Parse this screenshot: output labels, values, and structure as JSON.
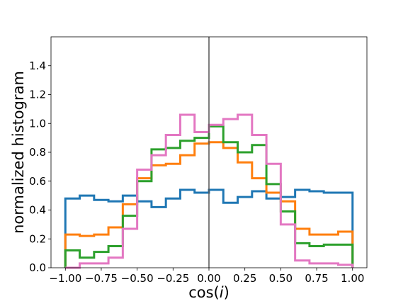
{
  "chart_data": {
    "type": "line",
    "style": "step histogram",
    "xlabel": "cos(i)",
    "xlabel_prefix": "cos(",
    "xlabel_var": "i",
    "xlabel_suffix": ")",
    "ylabel": "normalized histogram",
    "xlim": [
      -1.1,
      1.1
    ],
    "ylim": [
      0.0,
      1.6
    ],
    "xticks": [
      -1.0,
      -0.75,
      -0.5,
      -0.25,
      0.0,
      0.25,
      0.5,
      0.75,
      1.0
    ],
    "xtick_labels": [
      "−1.00",
      "−0.75",
      "−0.50",
      "−0.25",
      "0.00",
      "0.25",
      "0.50",
      "0.75",
      "1.00"
    ],
    "yticks": [
      0.0,
      0.2,
      0.4,
      0.6,
      0.8,
      1.0,
      1.2,
      1.4
    ],
    "ytick_labels": [
      "0.0",
      "0.2",
      "0.4",
      "0.6",
      "0.8",
      "1.0",
      "1.2",
      "1.4"
    ],
    "grid": false,
    "vline_x": 0.0,
    "bin_edges": [
      -1.0,
      -0.9,
      -0.8,
      -0.7,
      -0.6,
      -0.5,
      -0.4,
      -0.3,
      -0.2,
      -0.1,
      0.0,
      0.1,
      0.2,
      0.3,
      0.4,
      0.5,
      0.6,
      0.7,
      0.8,
      0.9,
      1.0
    ],
    "series": [
      {
        "color": "#1f77b4",
        "values": [
          0.48,
          0.5,
          0.47,
          0.46,
          0.5,
          0.46,
          0.42,
          0.48,
          0.54,
          0.52,
          0.54,
          0.45,
          0.49,
          0.53,
          0.48,
          0.49,
          0.54,
          0.53,
          0.52,
          0.52
        ]
      },
      {
        "color": "#ff7f0e",
        "values": [
          0.23,
          0.22,
          0.23,
          0.28,
          0.44,
          0.62,
          0.71,
          0.72,
          0.78,
          0.86,
          0.87,
          0.83,
          0.73,
          0.62,
          0.52,
          0.46,
          0.27,
          0.23,
          0.23,
          0.25
        ]
      },
      {
        "color": "#2ca02c",
        "values": [
          0.12,
          0.07,
          0.11,
          0.15,
          0.36,
          0.6,
          0.82,
          0.83,
          0.88,
          0.9,
          0.98,
          0.87,
          0.8,
          0.85,
          0.58,
          0.39,
          0.17,
          0.15,
          0.16,
          0.16
        ]
      },
      {
        "color": "#e377c2",
        "values": [
          0.0,
          0.03,
          0.03,
          0.07,
          0.27,
          0.68,
          0.78,
          0.92,
          1.06,
          0.94,
          0.99,
          1.03,
          1.06,
          0.92,
          0.72,
          0.3,
          0.05,
          0.03,
          0.03,
          0.02
        ]
      }
    ]
  }
}
